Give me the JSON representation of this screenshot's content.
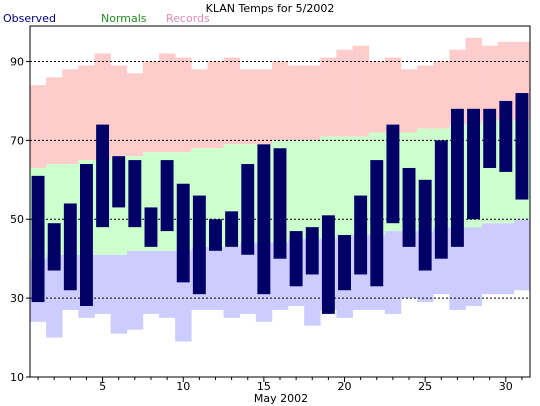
{
  "chart_data": {
    "type": "bar",
    "title": "KLAN Temps for 5/2002",
    "xlabel": "May 2002",
    "ylabel": "",
    "legend": {
      "placement": "top-left",
      "entries": [
        "Observed",
        "Normals",
        "Records"
      ]
    },
    "colors": {
      "observed": "#000066",
      "normals": "#ccffcc",
      "records_high": "#ffcccc",
      "records_low": "#ccccff",
      "legend_observed": "#000080",
      "legend_normals": "#228b22",
      "legend_records": "#e08db0"
    },
    "grid": {
      "y": true,
      "style": "dashed",
      "y_values": [
        30,
        50,
        70,
        90
      ]
    },
    "xlim": [
      0.5,
      31.5
    ],
    "ylim": [
      10,
      99
    ],
    "x_ticks": [
      5,
      10,
      15,
      20,
      25,
      30
    ],
    "y_ticks": [
      10,
      30,
      50,
      70,
      90
    ],
    "days": [
      1,
      2,
      3,
      4,
      5,
      6,
      7,
      8,
      9,
      10,
      11,
      12,
      13,
      14,
      15,
      16,
      17,
      18,
      19,
      20,
      21,
      22,
      23,
      24,
      25,
      26,
      27,
      28,
      29,
      30,
      31
    ],
    "series": [
      {
        "name": "Observed",
        "high": [
          61,
          49,
          54,
          64,
          74,
          66,
          65,
          53,
          65,
          59,
          56,
          50,
          52,
          64,
          69,
          68,
          47,
          48,
          51,
          46,
          56,
          65,
          74,
          63,
          60,
          70,
          78,
          78,
          78,
          80,
          82
        ],
        "low": [
          29,
          37,
          32,
          28,
          48,
          53,
          48,
          43,
          47,
          34,
          31,
          42,
          43,
          41,
          31,
          40,
          33,
          36,
          26,
          32,
          36,
          33,
          49,
          43,
          37,
          40,
          43,
          50,
          63,
          62,
          55
        ]
      },
      {
        "name": "Normals",
        "high": [
          63,
          64,
          64,
          65,
          65,
          66,
          66,
          67,
          67,
          67,
          68,
          68,
          69,
          69,
          69,
          70,
          70,
          70,
          71,
          71,
          71,
          72,
          72,
          72,
          73,
          73,
          74,
          74,
          75,
          75,
          75
        ],
        "low": [
          40,
          41,
          41,
          41,
          41,
          41,
          42,
          42,
          42,
          42,
          43,
          43,
          43,
          44,
          44,
          44,
          45,
          45,
          45,
          46,
          46,
          46,
          47,
          47,
          47,
          48,
          48,
          48,
          49,
          49,
          50
        ]
      },
      {
        "name": "Records",
        "high": [
          84,
          86,
          88,
          89,
          92,
          89,
          87,
          90,
          92,
          91,
          88,
          90,
          91,
          88,
          88,
          90,
          89,
          89,
          91,
          93,
          94,
          90,
          91,
          88,
          89,
          90,
          93,
          96,
          94,
          95,
          95
        ],
        "low": [
          24,
          20,
          27,
          25,
          26,
          21,
          22,
          26,
          25,
          19,
          27,
          27,
          25,
          26,
          24,
          27,
          28,
          23,
          27,
          25,
          27,
          27,
          26,
          30,
          29,
          31,
          27,
          28,
          31,
          31,
          32
        ]
      }
    ]
  }
}
